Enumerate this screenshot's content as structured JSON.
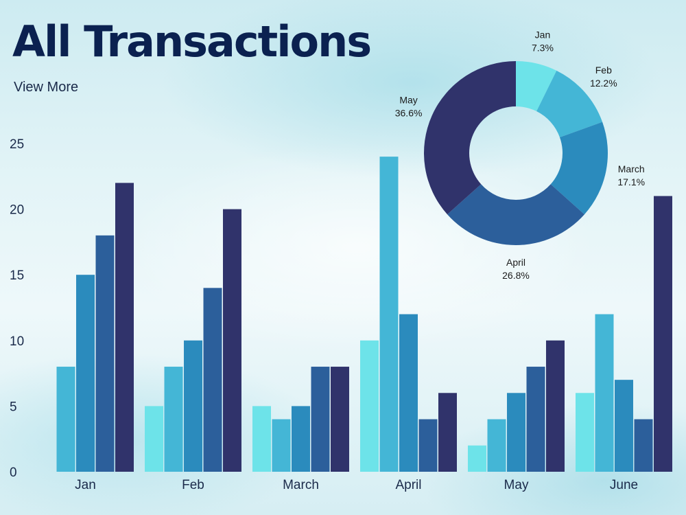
{
  "header": {
    "title": "All Transactions",
    "link_label": "View More"
  },
  "chart_data": [
    {
      "type": "bar",
      "categories": [
        "Jan",
        "Feb",
        "March",
        "April",
        "May",
        "June"
      ],
      "series": [
        {
          "color": "#6de3e9",
          "values": [
            null,
            5,
            5,
            10,
            2,
            6
          ]
        },
        {
          "color": "#44b6d6",
          "values": [
            8,
            8,
            4,
            24,
            4,
            12
          ]
        },
        {
          "color": "#2b8bbd",
          "values": [
            15,
            10,
            5,
            12,
            6,
            7
          ]
        },
        {
          "color": "#2c5f9b",
          "values": [
            18,
            14,
            8,
            4,
            8,
            4
          ]
        },
        {
          "color": "#30336b",
          "values": [
            22,
            20,
            8,
            6,
            10,
            21
          ]
        }
      ],
      "yticks": [
        0,
        5,
        10,
        15,
        20,
        25
      ],
      "ylim": [
        0,
        25
      ],
      "grid": false,
      "title": "",
      "xlabel": "",
      "ylabel": ""
    },
    {
      "type": "pie",
      "donut": true,
      "slices": [
        {
          "label": "Jan",
          "value": 7.3,
          "value_label": "7.3%",
          "color": "#6de3e9"
        },
        {
          "label": "Feb",
          "value": 12.2,
          "value_label": "12.2%",
          "color": "#44b6d6"
        },
        {
          "label": "March",
          "value": 17.1,
          "value_label": "17.1%",
          "color": "#2b8bbd"
        },
        {
          "label": "April",
          "value": 26.8,
          "value_label": "26.8%",
          "color": "#2c5f9b"
        },
        {
          "label": "May",
          "value": 36.6,
          "value_label": "36.6%",
          "color": "#30336b"
        }
      ]
    }
  ]
}
